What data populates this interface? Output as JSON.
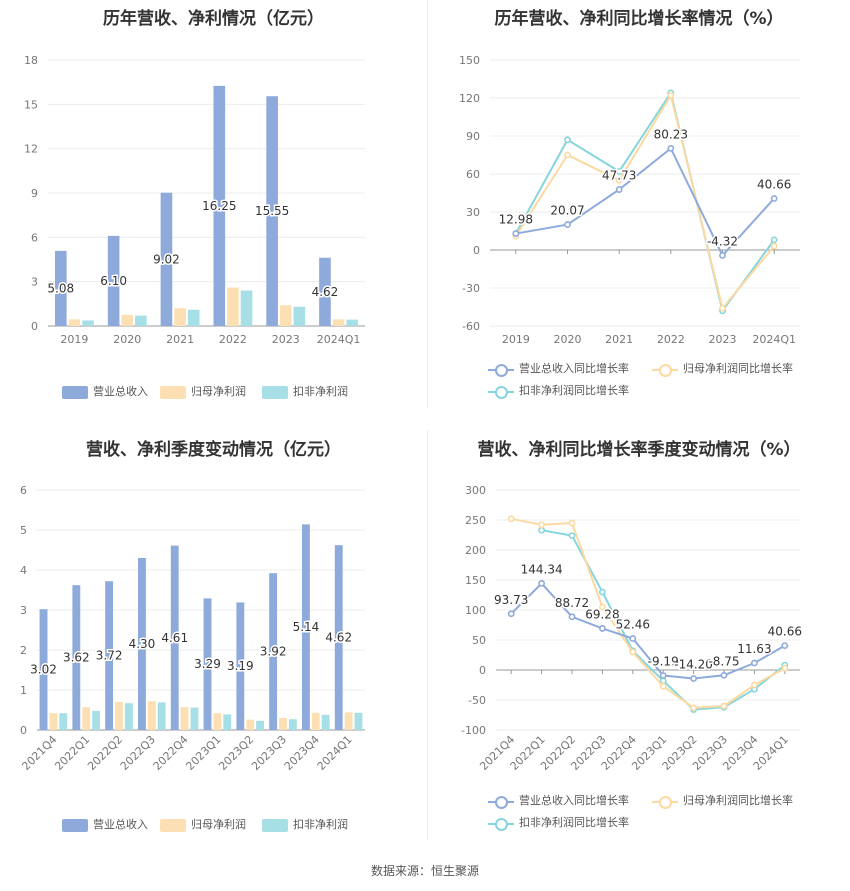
{
  "footer": {
    "source": "数据来源：恒生聚源"
  },
  "chart_data": [
    {
      "id": "annual-bar",
      "type": "bar",
      "title": "历年营收、净利情况（亿元）",
      "categories": [
        "2019",
        "2020",
        "2021",
        "2022",
        "2023",
        "2024Q1"
      ],
      "yticks": [
        "0",
        "3",
        "6",
        "9",
        "12",
        "15",
        "18"
      ],
      "ylim": [
        0,
        18
      ],
      "series": [
        {
          "name": "营业总收入",
          "color": "#8eaadb",
          "values": [
            5.08,
            6.1,
            9.02,
            16.25,
            15.55,
            4.62
          ]
        },
        {
          "name": "归母净利润",
          "color": "#fce0b4",
          "values": [
            0.45,
            0.75,
            1.2,
            2.6,
            1.4,
            0.45
          ]
        },
        {
          "name": "扣非净利润",
          "color": "#a6dfe6",
          "values": [
            0.38,
            0.7,
            1.1,
            2.4,
            1.3,
            0.43
          ]
        }
      ],
      "data_labels": [
        "5.08",
        "6.10",
        "9.02",
        "16.25",
        "15.55",
        "4.62"
      ],
      "grid": true,
      "legend": "bottom"
    },
    {
      "id": "annual-line",
      "type": "line",
      "title": "历年营收、净利同比增长率情况（%）",
      "categories": [
        "2019",
        "2020",
        "2021",
        "2022",
        "2023",
        "2024Q1"
      ],
      "yticks": [
        "-60",
        "-30",
        "0",
        "30",
        "60",
        "90",
        "120",
        "150"
      ],
      "ylim": [
        -60,
        150
      ],
      "series": [
        {
          "name": "营业总收入同比增长率",
          "color": "#8eaadb",
          "values": [
            12.98,
            20.07,
            47.73,
            80.23,
            -4.32,
            40.66
          ]
        },
        {
          "name": "归母净利润同比增长率",
          "color": "#fcd9a0",
          "values": [
            11,
            75,
            55,
            122,
            -46,
            3
          ]
        },
        {
          "name": "扣非净利润同比增长率",
          "color": "#85d6dc",
          "values": [
            13,
            87,
            62,
            124,
            -48,
            8
          ]
        }
      ],
      "data_labels": [
        "12.98",
        "20.07",
        "47.73",
        "80.23",
        "-4.32",
        "40.66"
      ],
      "grid": true,
      "legend": "bottom"
    },
    {
      "id": "quarter-bar",
      "type": "bar",
      "title": "营收、净利季度变动情况（亿元）",
      "categories": [
        "2021Q4",
        "2022Q1",
        "2022Q2",
        "2022Q3",
        "2022Q4",
        "2023Q1",
        "2023Q2",
        "2023Q3",
        "2023Q4",
        "2024Q1"
      ],
      "yticks": [
        "0",
        "1",
        "2",
        "3",
        "4",
        "5",
        "6"
      ],
      "ylim": [
        0,
        6
      ],
      "series": [
        {
          "name": "营业总收入",
          "color": "#8eaadb",
          "values": [
            3.02,
            3.62,
            3.72,
            4.3,
            4.61,
            3.29,
            3.19,
            3.92,
            5.14,
            4.62
          ]
        },
        {
          "name": "归母净利润",
          "color": "#fce0b4",
          "values": [
            0.42,
            0.57,
            0.7,
            0.72,
            0.57,
            0.42,
            0.26,
            0.3,
            0.43,
            0.44
          ]
        },
        {
          "name": "扣非净利润",
          "color": "#a6dfe6",
          "values": [
            0.42,
            0.48,
            0.67,
            0.69,
            0.56,
            0.39,
            0.23,
            0.27,
            0.38,
            0.43
          ]
        }
      ],
      "data_labels": [
        "3.02",
        "3.62",
        "3.72",
        "4.30",
        "4.61",
        "3.29",
        "3.19",
        "3.92",
        "5.14",
        "4.62"
      ],
      "grid": true,
      "legend": "bottom"
    },
    {
      "id": "quarter-line",
      "type": "line",
      "title": "营收、净利同比增长率季度变动情况（%）",
      "categories": [
        "2021Q4",
        "2022Q1",
        "2022Q2",
        "2022Q3",
        "2022Q4",
        "2023Q1",
        "2023Q2",
        "2023Q3",
        "2023Q4",
        "2024Q1"
      ],
      "yticks": [
        "-100",
        "-50",
        "0",
        "50",
        "100",
        "150",
        "200",
        "250",
        "300"
      ],
      "ylim": [
        -100,
        300
      ],
      "series": [
        {
          "name": "营业总收入同比增长率",
          "color": "#8eaadb",
          "values": [
            93.73,
            144.34,
            88.72,
            69.28,
            52.46,
            -9.19,
            -14.2,
            -8.75,
            11.63,
            40.66
          ]
        },
        {
          "name": "归母净利润同比增长率",
          "color": "#fcd9a0",
          "values": [
            252,
            242,
            245,
            105,
            30,
            -27,
            -63,
            -60,
            -25,
            3
          ]
        },
        {
          "name": "扣非净利润同比增长率",
          "color": "#85d6dc",
          "values": [
            null,
            233,
            224,
            130,
            32,
            -18,
            -66,
            -62,
            -32,
            8
          ]
        }
      ],
      "data_labels": [
        "93.73",
        "144.34",
        "88.72",
        "69.28",
        "52.46",
        "-9.19",
        "-14.20",
        "-8.75",
        "11.63",
        "40.66"
      ],
      "grid": true,
      "legend": "bottom"
    }
  ]
}
